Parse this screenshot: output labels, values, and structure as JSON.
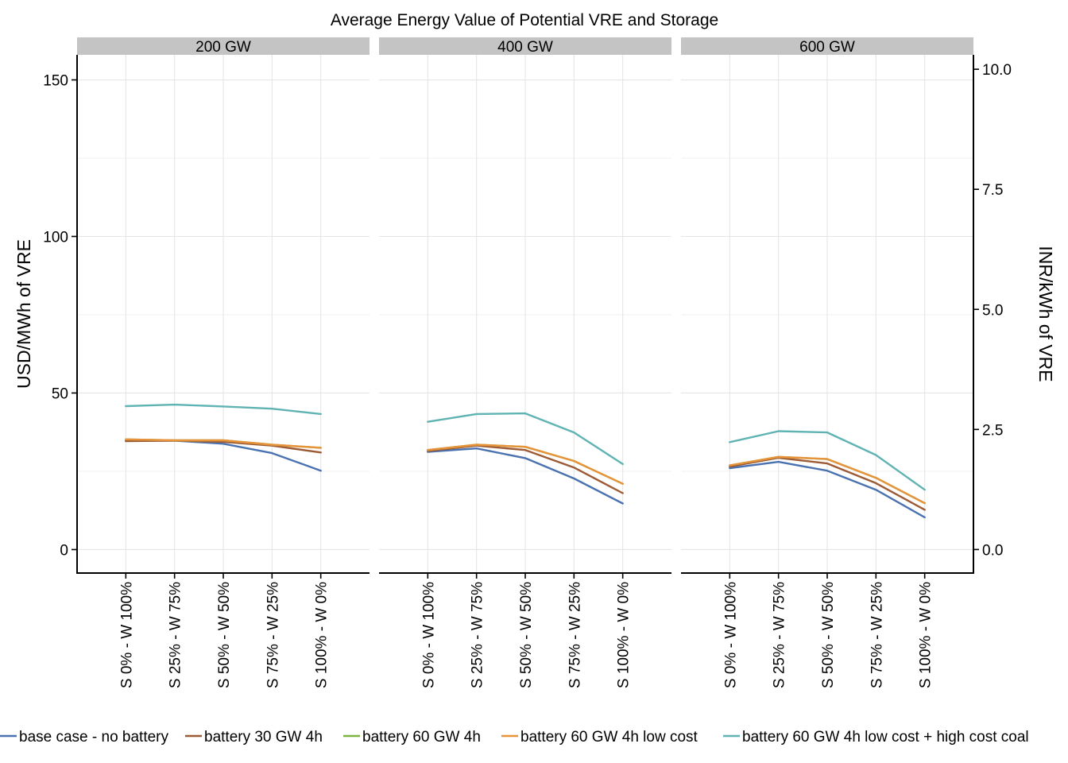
{
  "chart_data": {
    "type": "line",
    "title": "Average Energy Value of Potential VRE and Storage",
    "ylabel": "USD/MWh of VRE",
    "ylabel_right": "INR/kWh of VRE",
    "ylim": [
      -7.5,
      158
    ],
    "yticks": [
      0,
      50,
      100,
      150
    ],
    "ylim_right": [
      -0.49,
      10.3
    ],
    "yticks_right": [
      "0.0",
      "2.5",
      "5.0",
      "7.5",
      "10.0"
    ],
    "categories": [
      "S 0% - W 100%",
      "S 25% - W 75%",
      "S 50% - W 50%",
      "S 75% - W 25%",
      "S 100% - W 0%"
    ],
    "grid": true,
    "legend_position": "bottom",
    "panels": [
      {
        "label": "200 GW",
        "series": [
          {
            "name": "base case - no battery",
            "values": [
              34.8,
              34.8,
              33.8,
              30.8,
              25.2
            ]
          },
          {
            "name": "battery 30 GW 4h",
            "values": [
              34.6,
              34.8,
              34.4,
              33.2,
              31.0
            ]
          },
          {
            "name": "battery 60 GW 4h",
            "values": [
              35.2,
              34.9,
              34.9,
              33.5,
              32.5
            ]
          },
          {
            "name": "battery 60 GW 4h low cost",
            "values": [
              35.2,
              34.9,
              34.9,
              33.5,
              32.5
            ]
          },
          {
            "name": "battery 60 GW 4h low cost + high cost coal",
            "values": [
              45.8,
              46.3,
              45.7,
              45.0,
              43.3
            ]
          }
        ]
      },
      {
        "label": "400 GW",
        "series": [
          {
            "name": "base case - no battery",
            "values": [
              31.2,
              32.3,
              29.2,
              22.7,
              14.7
            ]
          },
          {
            "name": "battery 30 GW 4h",
            "values": [
              31.5,
              33.2,
              31.8,
              26.2,
              18.0
            ]
          },
          {
            "name": "battery 60 GW 4h",
            "values": [
              31.8,
              33.5,
              32.8,
              28.3,
              21.0
            ]
          },
          {
            "name": "battery 60 GW 4h low cost",
            "values": [
              31.8,
              33.5,
              32.8,
              28.3,
              21.0
            ]
          },
          {
            "name": "battery 60 GW 4h low cost + high cost coal",
            "values": [
              40.8,
              43.3,
              43.5,
              37.4,
              27.3
            ]
          }
        ]
      },
      {
        "label": "600 GW",
        "series": [
          {
            "name": "base case - no battery",
            "values": [
              26.0,
              28.0,
              25.2,
              19.1,
              10.3
            ]
          },
          {
            "name": "battery 30 GW 4h",
            "values": [
              26.5,
              29.3,
              27.5,
              21.2,
              12.7
            ]
          },
          {
            "name": "battery 60 GW 4h",
            "values": [
              26.9,
              29.6,
              28.9,
              22.9,
              14.8
            ]
          },
          {
            "name": "battery 60 GW 4h low cost",
            "values": [
              26.9,
              29.6,
              28.9,
              22.9,
              14.8
            ]
          },
          {
            "name": "battery 60 GW 4h low cost + high cost coal",
            "values": [
              34.3,
              37.8,
              37.4,
              30.2,
              19.1
            ]
          }
        ]
      }
    ],
    "legend": [
      {
        "name": "base case - no battery",
        "color": "#4a72b0"
      },
      {
        "name": "battery 30 GW 4h",
        "color": "#9c5a35"
      },
      {
        "name": "battery 60 GW 4h",
        "color": "#7db342"
      },
      {
        "name": "battery 60 GW 4h low cost",
        "color": "#e8923a"
      },
      {
        "name": "battery 60 GW 4h low cost + high cost coal",
        "color": "#5fb3b3"
      }
    ]
  }
}
